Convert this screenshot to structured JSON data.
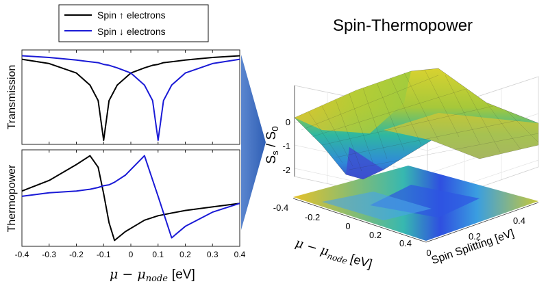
{
  "colors": {
    "spin_up": "#000000",
    "spin_down": "#1a1ad6",
    "arrow": "#3a6fc4",
    "axes": "#222222"
  },
  "legend": {
    "up_prefix": "Spin",
    "up_arrow": "↑",
    "up_suffix": "electrons",
    "down_prefix": "Spin",
    "down_arrow": "↓",
    "down_suffix": "electrons"
  },
  "left": {
    "xlabel_mu": "μ − μ",
    "xlabel_sub": "node",
    "xlabel_unit": "[eV]"
  },
  "right": {
    "title": "Spin-Thermopower",
    "zlabel_s": "S",
    "zlabel_s_sub": "s",
    "zlabel_slash": " / ",
    "zlabel_s0": "S",
    "zlabel_s0_sub": "0",
    "xlabel_mu": "μ − μ",
    "xlabel_sub": "node",
    "xlabel_unit": "[eV]",
    "ylabel": "Spin Splitting [eV]"
  },
  "chart_data": [
    {
      "type": "line",
      "ylabel": "Transmission",
      "xlim": [
        -0.4,
        0.4
      ],
      "x": [
        -0.4,
        -0.3,
        -0.2,
        -0.15,
        -0.12,
        -0.1,
        -0.08,
        -0.05,
        0,
        0.05,
        0.08,
        0.1,
        0.12,
        0.15,
        0.2,
        0.3,
        0.4
      ],
      "series": [
        {
          "name": "Spin ↑ electrons",
          "values": [
            0.94,
            0.89,
            0.78,
            0.64,
            0.46,
            0.0,
            0.46,
            0.64,
            0.78,
            0.84,
            0.87,
            0.88,
            0.9,
            0.91,
            0.93,
            0.96,
            0.98
          ]
        },
        {
          "name": "Spin ↓ electrons",
          "values": [
            0.98,
            0.96,
            0.93,
            0.91,
            0.9,
            0.88,
            0.87,
            0.84,
            0.78,
            0.64,
            0.46,
            0.0,
            0.46,
            0.64,
            0.78,
            0.89,
            0.94
          ]
        }
      ],
      "xticks": [
        "-0.4",
        "-0.3",
        "-0.2",
        "-0.1",
        "0",
        "0.1",
        "0.2",
        "0.3",
        "0.4"
      ]
    },
    {
      "type": "line",
      "ylabel": "Thermopower",
      "xlim": [
        -0.4,
        0.4
      ],
      "x": [
        -0.4,
        -0.3,
        -0.2,
        -0.15,
        -0.12,
        -0.1,
        -0.08,
        -0.06,
        -0.02,
        0.05,
        0.1,
        0.15,
        0.2,
        0.3,
        0.4
      ],
      "series": [
        {
          "name": "Spin ↑ electrons",
          "values": [
            0.58,
            0.7,
            0.88,
            0.98,
            0.85,
            0.55,
            0.22,
            0.02,
            0.12,
            0.25,
            0.3,
            0.33,
            0.36,
            0.4,
            0.44
          ]
        },
        {
          "name": "Spin ↓ electrons",
          "values": [
            0.52,
            0.56,
            0.58,
            0.6,
            0.62,
            0.64,
            0.65,
            0.68,
            0.76,
            0.98,
            0.52,
            0.05,
            0.18,
            0.34,
            0.44
          ]
        }
      ],
      "xticks": [
        "-0.4",
        "-0.3",
        "-0.2",
        "-0.1",
        "0",
        "0.1",
        "0.2",
        "0.3",
        "0.4"
      ]
    },
    {
      "type": "surface",
      "title": "Spin-Thermopower",
      "xlim": [
        -0.4,
        0.4
      ],
      "ylim": [
        0,
        0.5
      ],
      "zlim": [
        -2.5,
        0.5
      ],
      "xticks": [
        "-0.4",
        "-0.2",
        "0",
        "0.2",
        "0.4"
      ],
      "yticks": [
        "0",
        "0.2",
        "0.4"
      ],
      "zticks": [
        "0",
        "-1",
        "-2"
      ],
      "colormap": "parula"
    }
  ]
}
